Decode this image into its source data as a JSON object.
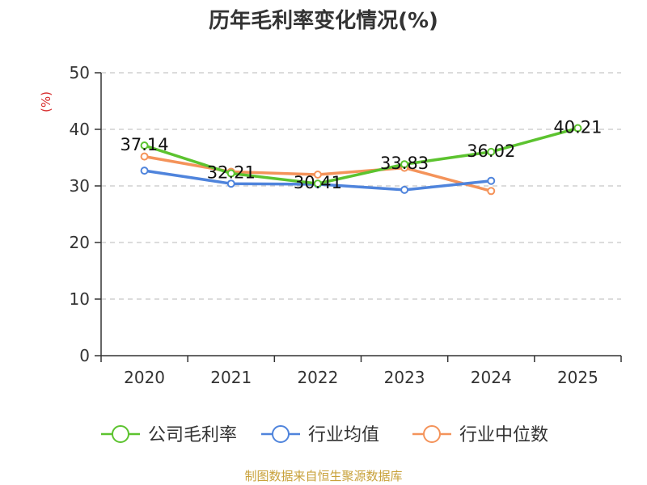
{
  "chart_data": {
    "type": "line",
    "title": "历年毛利率变化情况(%)",
    "ylabel": "(%)",
    "categories": [
      "2020",
      "2021",
      "2022",
      "2023",
      "2024",
      "2025"
    ],
    "ylim": [
      0,
      50
    ],
    "yticks": [
      "0",
      "10",
      "20",
      "30",
      "40",
      "50"
    ],
    "grid": "horizontal-dashed",
    "legend_position": "bottom",
    "series": [
      {
        "name": "公司毛利率",
        "color": "#5cc32f",
        "values": [
          37.14,
          32.21,
          30.41,
          33.83,
          36.02,
          40.21
        ],
        "labels": [
          "37.14",
          "32.21",
          "30.41",
          "33.83",
          "36.02",
          "40.21"
        ]
      },
      {
        "name": "行业均值",
        "color": "#4f84dc",
        "values": [
          32.7,
          30.4,
          30.3,
          29.3,
          30.9,
          null
        ],
        "labels": []
      },
      {
        "name": "行业中位数",
        "color": "#f4935a",
        "values": [
          35.2,
          32.5,
          32.0,
          33.2,
          29.1,
          null
        ],
        "labels": []
      }
    ],
    "source": "制图数据来自恒生聚源数据库"
  }
}
